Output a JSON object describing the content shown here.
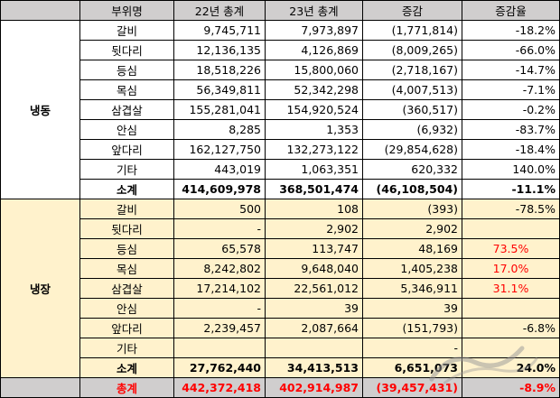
{
  "headers": {
    "category": "",
    "part": "부위명",
    "y22": "22년 총계",
    "y23": "23년 총계",
    "diff": "증감",
    "rate": "증감율"
  },
  "frozen": {
    "label": "냉동",
    "rows": [
      {
        "part": "갈비",
        "y22": "9,745,711",
        "y23": "7,973,897",
        "diff": "(1,771,814)",
        "rate": "-18.2%"
      },
      {
        "part": "뒷다리",
        "y22": "12,136,135",
        "y23": "4,126,869",
        "diff": "(8,009,265)",
        "rate": "-66.0%"
      },
      {
        "part": "등심",
        "y22": "18,518,226",
        "y23": "15,800,060",
        "diff": "(2,718,167)",
        "rate": "-14.7%"
      },
      {
        "part": "목심",
        "y22": "56,349,811",
        "y23": "52,342,298",
        "diff": "(4,007,513)",
        "rate": "-7.1%"
      },
      {
        "part": "삼겹살",
        "y22": "155,281,041",
        "y23": "154,920,524",
        "diff": "(360,517)",
        "rate": "-0.2%"
      },
      {
        "part": "안심",
        "y22": "8,285",
        "y23": "1,353",
        "diff": "(6,932)",
        "rate": "-83.7%"
      },
      {
        "part": "앞다리",
        "y22": "162,127,750",
        "y23": "132,273,122",
        "diff": "(29,854,628)",
        "rate": "-18.4%"
      },
      {
        "part": "기타",
        "y22": "443,019",
        "y23": "1,063,351",
        "diff": "620,332",
        "rate": "140.0%"
      }
    ],
    "subtotal": {
      "part": "소계",
      "y22": "414,609,978",
      "y23": "368,501,474",
      "diff": "(46,108,504)",
      "rate": "-11.1%"
    }
  },
  "chilled": {
    "label": "냉장",
    "rows": [
      {
        "part": "갈비",
        "y22": "500",
        "y23": "108",
        "diff": "(393)",
        "rate": "-78.5%"
      },
      {
        "part": "뒷다리",
        "y22": "-",
        "y23": "2,902",
        "diff": "2,902",
        "rate": ""
      },
      {
        "part": "등심",
        "y22": "65,578",
        "y23": "113,747",
        "diff": "48,169",
        "rate": "73.5%"
      },
      {
        "part": "목심",
        "y22": "8,242,802",
        "y23": "9,648,040",
        "diff": "1,405,238",
        "rate": "17.0%"
      },
      {
        "part": "삼겹살",
        "y22": "17,214,102",
        "y23": "22,561,012",
        "diff": "5,346,911",
        "rate": "31.1%"
      },
      {
        "part": "안심",
        "y22": "-",
        "y23": "39",
        "diff": "39",
        "rate": ""
      },
      {
        "part": "앞다리",
        "y22": "2,239,457",
        "y23": "2,087,664",
        "diff": "(151,793)",
        "rate": "-6.8%"
      },
      {
        "part": "기타",
        "y22": "",
        "y23": "",
        "diff": "-",
        "rate": ""
      }
    ],
    "subtotal": {
      "part": "소계",
      "y22": "27,762,440",
      "y23": "34,413,513",
      "diff": "6,651,073",
      "rate": "24.0%"
    }
  },
  "total": {
    "part": "총계",
    "y22": "442,372,418",
    "y23": "402,914,987",
    "diff": "(39,457,431)",
    "rate": "-8.9%"
  },
  "colors": {
    "header_bg": "#d0cece",
    "chilled_bg": "#fff2cc",
    "positive_rate": "#ff0000",
    "total_text": "#ff0000"
  }
}
